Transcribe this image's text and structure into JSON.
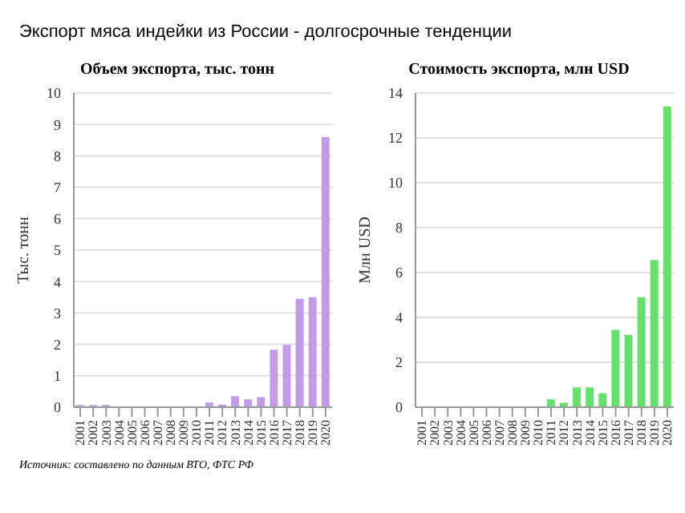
{
  "chart_data": [
    {
      "type": "bar",
      "title": "Объем экспорта, тыс. тонн",
      "ylabel": "Тыс. тонн",
      "categories": [
        "2001",
        "2002",
        "2003",
        "2004",
        "2005",
        "2006",
        "2007",
        "2008",
        "2009",
        "2010",
        "2011",
        "2012",
        "2013",
        "2014",
        "2015",
        "2016",
        "2017",
        "2018",
        "2019",
        "2020"
      ],
      "values": [
        0.07,
        0.07,
        0.07,
        0,
        0,
        0,
        0,
        0,
        0,
        0,
        0.15,
        0.08,
        0.35,
        0.25,
        0.32,
        1.83,
        1.98,
        3.45,
        3.5,
        8.6
      ],
      "color": "#c39be8",
      "ylim": [
        0,
        10
      ],
      "yticks": [
        0,
        1,
        2,
        3,
        4,
        5,
        6,
        7,
        8,
        9,
        10
      ],
      "grid": "y",
      "annotations": [
        "Экспорт мяса индейки из России - долгосрочные тенденции",
        "Источник: составлено по данным ВТО, ФТС РФ"
      ]
    },
    {
      "type": "bar",
      "title": "Стоимость экспорта, млн USD",
      "ylabel": "Млн USD",
      "categories": [
        "2001",
        "2002",
        "2003",
        "2004",
        "2005",
        "2006",
        "2007",
        "2008",
        "2009",
        "2010",
        "2011",
        "2012",
        "2013",
        "2014",
        "2015",
        "2016",
        "2017",
        "2018",
        "2019",
        "2020"
      ],
      "values": [
        0,
        0,
        0,
        0,
        0,
        0,
        0,
        0,
        0,
        0,
        0.35,
        0.2,
        0.88,
        0.88,
        0.62,
        3.45,
        3.22,
        4.9,
        6.55,
        13.4
      ],
      "color": "#66e06a",
      "ylim": [
        0,
        14
      ],
      "yticks": [
        0,
        2,
        4,
        6,
        8,
        10,
        12,
        14
      ],
      "grid": "y"
    }
  ]
}
